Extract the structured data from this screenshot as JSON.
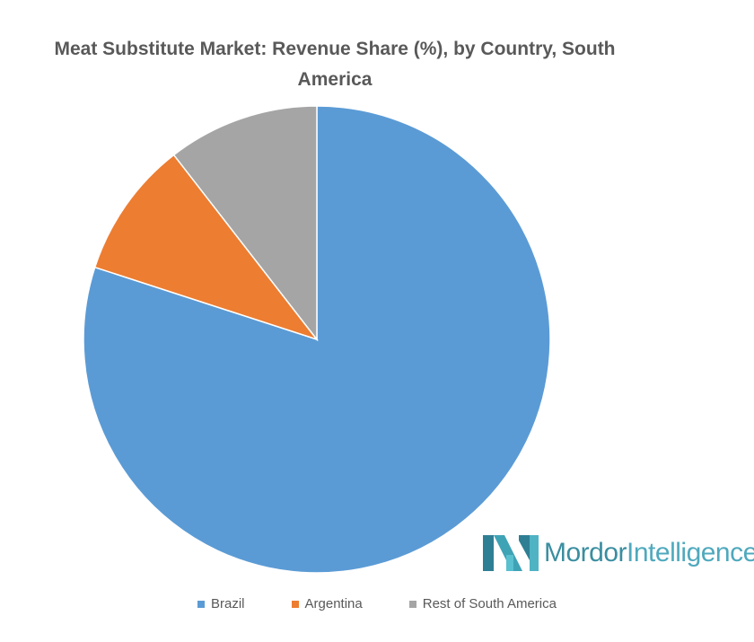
{
  "chart_data": {
    "type": "pie",
    "title": "Meat Substitute Market: Revenue Share (%), by Country, South America",
    "title_lines": [
      "Meat Substitute Market: Revenue Share (%), by Country, South",
      "America"
    ],
    "start_angle": "12 o'clock",
    "direction": "clockwise",
    "legend_position": "bottom",
    "slices": [
      {
        "label": "Brazil",
        "value": 80,
        "color": "#5b9bd5"
      },
      {
        "label": "Argentina",
        "value": 9.5,
        "color": "#ed7d31"
      },
      {
        "label": "Rest of South America",
        "value": 10.5,
        "color": "#a5a5a5"
      }
    ]
  },
  "branding": {
    "logo_text_bold": "Mordor",
    "logo_text_light": "Intelligence",
    "logo_icon": "mordor-intelligence-logo-icon"
  }
}
